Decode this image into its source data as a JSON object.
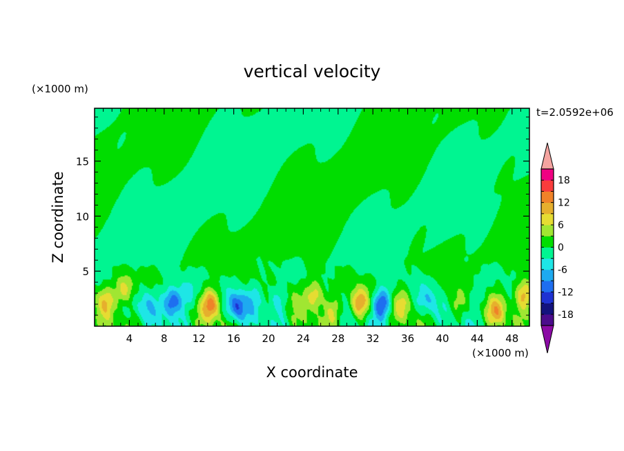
{
  "chart_data": {
    "type": "heatmap",
    "title": "vertical velocity",
    "xlabel": "X coordinate",
    "ylabel": "Z coordinate",
    "x_unit": "(×1000 m)",
    "y_unit": "(×1000 m)",
    "time_label": "t=2.0592e+06",
    "xlim": [
      0,
      50
    ],
    "ylim": [
      0,
      19.8
    ],
    "x_ticks": [
      4,
      8,
      12,
      16,
      20,
      24,
      28,
      32,
      36,
      40,
      44,
      48
    ],
    "x_tick_labels": [
      "4",
      "8",
      "12",
      "16",
      "20",
      "24",
      "28",
      "32",
      "36",
      "40",
      "44",
      "48"
    ],
    "y_ticks": [
      5,
      10,
      15
    ],
    "y_tick_labels": [
      "5",
      "10",
      "15"
    ],
    "colorbar": {
      "levels": [
        -21,
        -18,
        -15,
        -12,
        -9,
        -6,
        -3,
        0,
        3,
        6,
        9,
        12,
        15,
        18,
        21
      ],
      "tick_values": [
        -18,
        -12,
        -6,
        0,
        6,
        12,
        18
      ],
      "tick_labels": [
        "-18",
        "-12",
        "-6",
        "0",
        "6",
        "12",
        "18"
      ],
      "colors": [
        "#4b0c8c",
        "#13137e",
        "#1e32d2",
        "#1e6ef0",
        "#1eaaf0",
        "#1ee6e6",
        "#00f591",
        "#00dd00",
        "#a0e632",
        "#e6dc32",
        "#e6af2d",
        "#f08228",
        "#fa3c3c",
        "#f00082"
      ],
      "under_color": "#8b0aa5",
      "over_color": "#f4a4a0"
    },
    "field_features": [
      {
        "x": 1.2,
        "z": 2.3,
        "w": 8
      },
      {
        "x": 3.5,
        "z": 3.3,
        "w": 9
      },
      {
        "x": 6.0,
        "z": 2.0,
        "w": -5
      },
      {
        "x": 9.0,
        "z": 2.2,
        "w": -13
      },
      {
        "x": 10.6,
        "z": 3.0,
        "w": -5
      },
      {
        "x": 13.4,
        "z": 2.0,
        "w": 13
      },
      {
        "x": 16.4,
        "z": 1.8,
        "w": -11
      },
      {
        "x": 18.2,
        "z": 2.6,
        "w": -4
      },
      {
        "x": 21.0,
        "z": 2.4,
        "w": -6
      },
      {
        "x": 23.0,
        "z": 2.6,
        "w": 3
      },
      {
        "x": 25.4,
        "z": 2.8,
        "w": 9
      },
      {
        "x": 27.4,
        "z": 1.4,
        "w": 6
      },
      {
        "x": 30.4,
        "z": 2.1,
        "w": 12
      },
      {
        "x": 33.0,
        "z": 2.0,
        "w": -13
      },
      {
        "x": 35.4,
        "z": 2.0,
        "w": 6
      },
      {
        "x": 38.4,
        "z": 2.4,
        "w": -5
      },
      {
        "x": 41.5,
        "z": 2.1,
        "w": 4
      },
      {
        "x": 43.8,
        "z": 2.8,
        "w": -3
      },
      {
        "x": 46.2,
        "z": 1.4,
        "w": 9
      },
      {
        "x": 49.3,
        "z": 2.8,
        "w": 11
      }
    ]
  }
}
